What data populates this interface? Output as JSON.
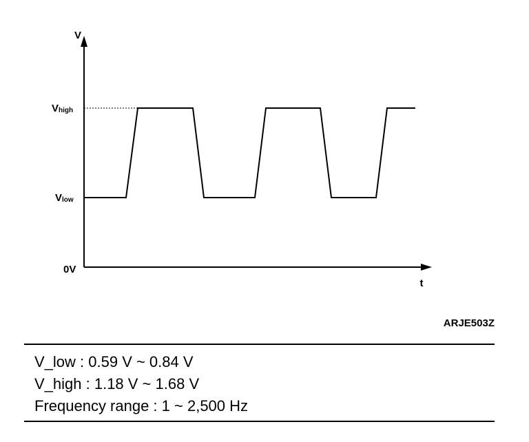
{
  "diagram": {
    "axis_y_label": "V",
    "axis_x_label": "t",
    "level_high": {
      "main": "V",
      "sub": "high"
    },
    "level_low": {
      "main": "V",
      "sub": "low"
    },
    "origin_label": "0V",
    "figure_code": "ARJE503Z"
  },
  "spec": {
    "lines": [
      "V_low : 0.59 V ~ 0.84 V",
      "V_high : 1.18 V ~ 1.68 V",
      "Frequency range : 1 ~ 2,500 Hz"
    ]
  }
}
